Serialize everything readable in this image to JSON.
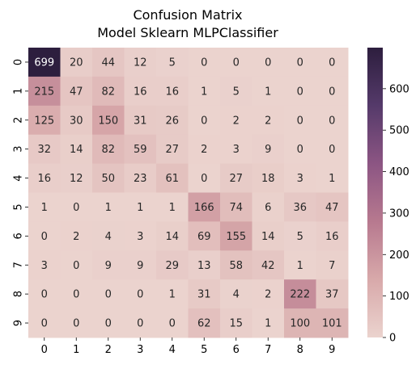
{
  "chart_data": {
    "type": "heatmap",
    "title": "Confusion Matrix",
    "subtitle": "Model Sklearn MLPClassifier",
    "x_categories": [
      "0",
      "1",
      "2",
      "3",
      "4",
      "5",
      "6",
      "7",
      "8",
      "9"
    ],
    "y_categories": [
      "0",
      "1",
      "2",
      "3",
      "4",
      "5",
      "6",
      "7",
      "8",
      "9"
    ],
    "values": [
      [
        699,
        20,
        44,
        12,
        5,
        0,
        0,
        0,
        0,
        0
      ],
      [
        215,
        47,
        82,
        16,
        16,
        1,
        5,
        1,
        0,
        0
      ],
      [
        125,
        30,
        150,
        31,
        26,
        0,
        2,
        2,
        0,
        0
      ],
      [
        32,
        14,
        82,
        59,
        27,
        2,
        3,
        9,
        0,
        0
      ],
      [
        16,
        12,
        50,
        23,
        61,
        0,
        27,
        18,
        3,
        1
      ],
      [
        1,
        0,
        1,
        1,
        1,
        166,
        74,
        6,
        36,
        47
      ],
      [
        0,
        2,
        4,
        3,
        14,
        69,
        155,
        14,
        5,
        16
      ],
      [
        3,
        0,
        9,
        9,
        29,
        13,
        58,
        42,
        1,
        7
      ],
      [
        0,
        0,
        0,
        0,
        1,
        31,
        4,
        2,
        222,
        37
      ],
      [
        0,
        0,
        0,
        0,
        0,
        62,
        15,
        1,
        100,
        101
      ]
    ],
    "colorbar": {
      "min": 0,
      "max": 699,
      "ticks": [
        0,
        100,
        200,
        300,
        400,
        500,
        600
      ]
    },
    "colormap": [
      "#ebd3ce",
      "#d8a9aa",
      "#b7798f",
      "#8c5583",
      "#553a6a",
      "#2d1e3e"
    ],
    "annotation_dark_text_color": "#262626",
    "annotation_light_text_color": "#ffffff"
  }
}
